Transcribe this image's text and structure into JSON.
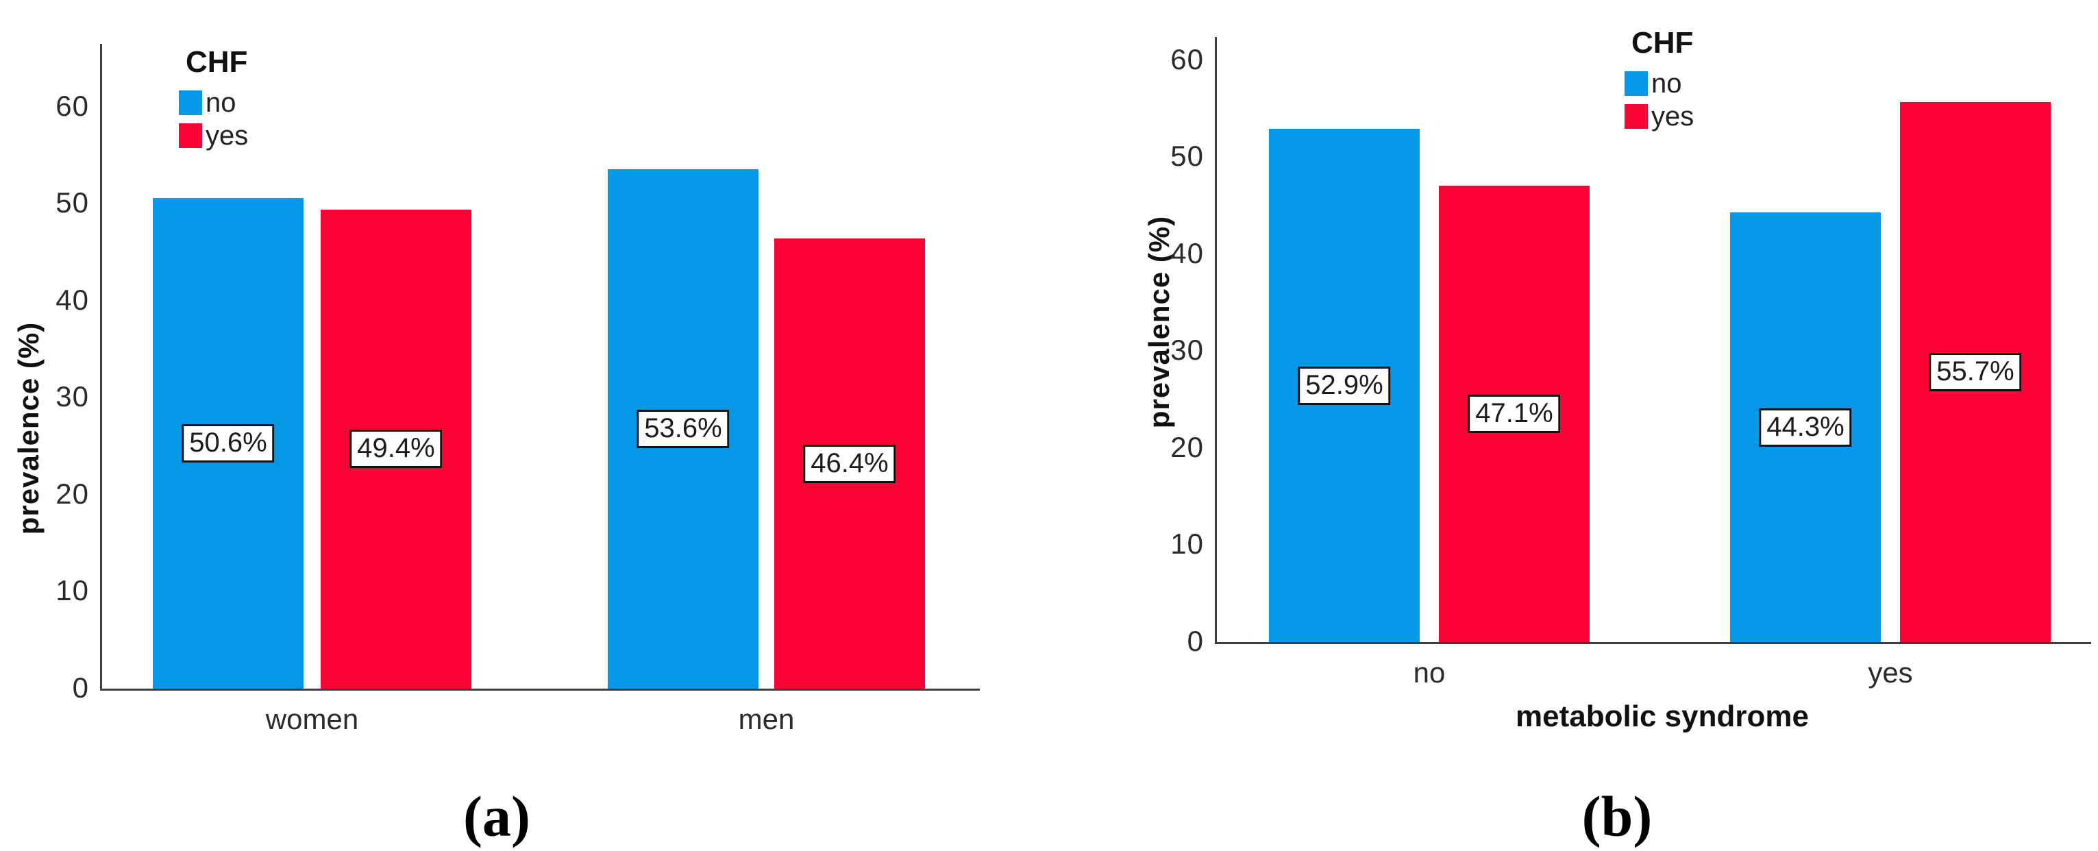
{
  "chart_data": [
    {
      "type": "bar",
      "panel_caption": "(a)",
      "legend": {
        "title": "CHF",
        "position": "top-left-inside"
      },
      "categories": [
        "women",
        "men"
      ],
      "series": [
        {
          "name": "no",
          "color": "#0598E9",
          "values": [
            50.6,
            53.6
          ],
          "labels": [
            "50.6%",
            "53.6%"
          ]
        },
        {
          "name": "yes",
          "color": "#FB0234",
          "values": [
            49.4,
            46.4
          ],
          "labels": [
            "49.4%",
            "46.4%"
          ]
        }
      ],
      "xlabel": "",
      "ylabel": "prevalence (%)",
      "yticks": [
        0,
        10,
        20,
        30,
        40,
        50,
        60
      ],
      "ylim": [
        0,
        66.5
      ],
      "grid": false,
      "bar_label_position": "middle"
    },
    {
      "type": "bar",
      "panel_caption": "(b)",
      "legend": {
        "title": "CHF",
        "position": "top-center-inside"
      },
      "categories": [
        "no",
        "yes"
      ],
      "series": [
        {
          "name": "no",
          "color": "#0598E9",
          "values": [
            52.9,
            44.3
          ],
          "labels": [
            "52.9%",
            "44.3%"
          ]
        },
        {
          "name": "yes",
          "color": "#FB0234",
          "values": [
            47.1,
            55.7
          ],
          "labels": [
            "47.1%",
            "55.7%"
          ]
        }
      ],
      "xlabel": "metabolic syndrome",
      "ylabel": "prevalence (%)",
      "yticks": [
        0,
        10,
        20,
        30,
        40,
        50,
        60
      ],
      "ylim": [
        0,
        62.4
      ],
      "grid": false,
      "bar_label_position": "middle"
    }
  ]
}
